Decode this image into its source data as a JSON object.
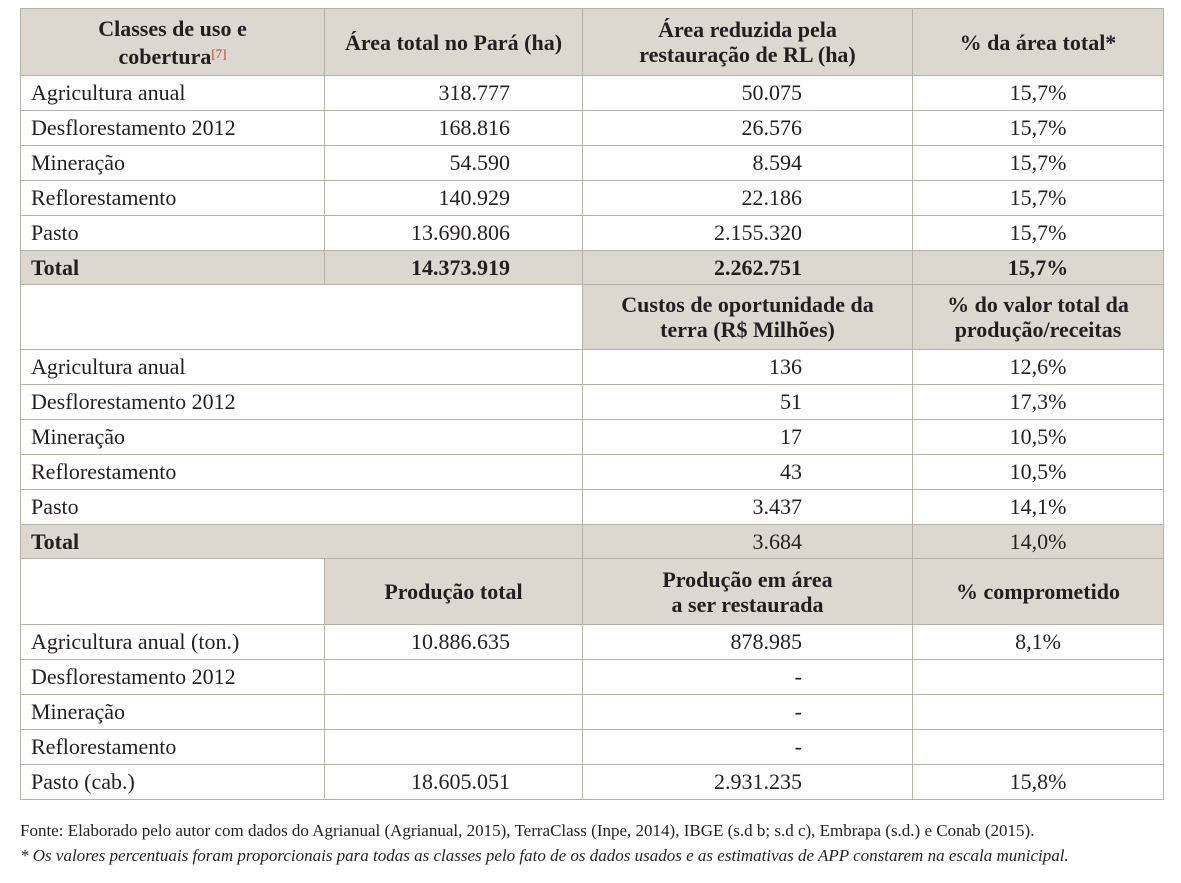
{
  "headers": {
    "col1_line1": "Classes de uso e",
    "col1_line2": "cobertura",
    "col1_ref": "[7]",
    "col2": "Área total no Pará (ha)",
    "col3_line1": "Área reduzida pela",
    "col3_line2": "restauração de RL (ha)",
    "col4": "% da área total*"
  },
  "section1": {
    "rows": [
      {
        "label": "Agricultura anual",
        "total": "318.777",
        "reduced": "50.075",
        "pct": "15,7%"
      },
      {
        "label": "Desflorestamento 2012",
        "total": "168.816",
        "reduced": "26.576",
        "pct": "15,7%"
      },
      {
        "label": "Mineração",
        "total": "54.590",
        "reduced": "8.594",
        "pct": "15,7%"
      },
      {
        "label": "Reflorestamento",
        "total": "140.929",
        "reduced": "22.186",
        "pct": "15,7%"
      },
      {
        "label": "Pasto",
        "total": "13.690.806",
        "reduced": "2.155.320",
        "pct": "15,7%"
      }
    ],
    "total": {
      "label": "Total",
      "total": "14.373.919",
      "reduced": "2.262.751",
      "pct": "15,7%"
    }
  },
  "section2": {
    "header_col3_line1": "Custos de oportunidade da",
    "header_col3_line2": "terra (R$ Milhões)",
    "header_col4_line1": "% do valor total da",
    "header_col4_line2": "produção/receitas",
    "rows": [
      {
        "label": "Agricultura anual",
        "cost": "136",
        "pct": "12,6%"
      },
      {
        "label": "Desflorestamento 2012",
        "cost": "51",
        "pct": "17,3%"
      },
      {
        "label": "Mineração",
        "cost": "17",
        "pct": "10,5%"
      },
      {
        "label": "Reflorestamento",
        "cost": "43",
        "pct": "10,5%"
      },
      {
        "label": "Pasto",
        "cost": "3.437",
        "pct": "14,1%"
      }
    ],
    "total": {
      "label": "Total",
      "cost": "3.684",
      "pct": "14,0%"
    }
  },
  "section3": {
    "header_col2": "Produção total",
    "header_col3_line1": "Produção em área",
    "header_col3_line2": "a ser restaurada",
    "header_col4": "% comprometido",
    "rows": [
      {
        "label": "Agricultura anual (ton.)",
        "production": "10.886.635",
        "restored": "878.985",
        "pct": "8,1%"
      },
      {
        "label": "Desflorestamento 2012",
        "production": "",
        "restored": "-",
        "pct": ""
      },
      {
        "label": "Mineração",
        "production": "",
        "restored": "-",
        "pct": ""
      },
      {
        "label": "Reflorestamento",
        "production": "",
        "restored": "-",
        "pct": ""
      },
      {
        "label": "Pasto (cab.)",
        "production": "18.605.051",
        "restored": "2.931.235",
        "pct": "15,8%"
      }
    ]
  },
  "notes": {
    "source": "Fonte: Elaborado pelo autor com dados do Agrianual (Agrianual, 2015), TerraClass (Inpe, 2014), IBGE (s.d b; s.d c), Embrapa (s.d.) e Conab (2015).",
    "footnote": "* Os valores percentuais foram proporcionais para todas as classes pelo fato de os dados usados e as estimativas de APP constarem na escala municipal."
  }
}
